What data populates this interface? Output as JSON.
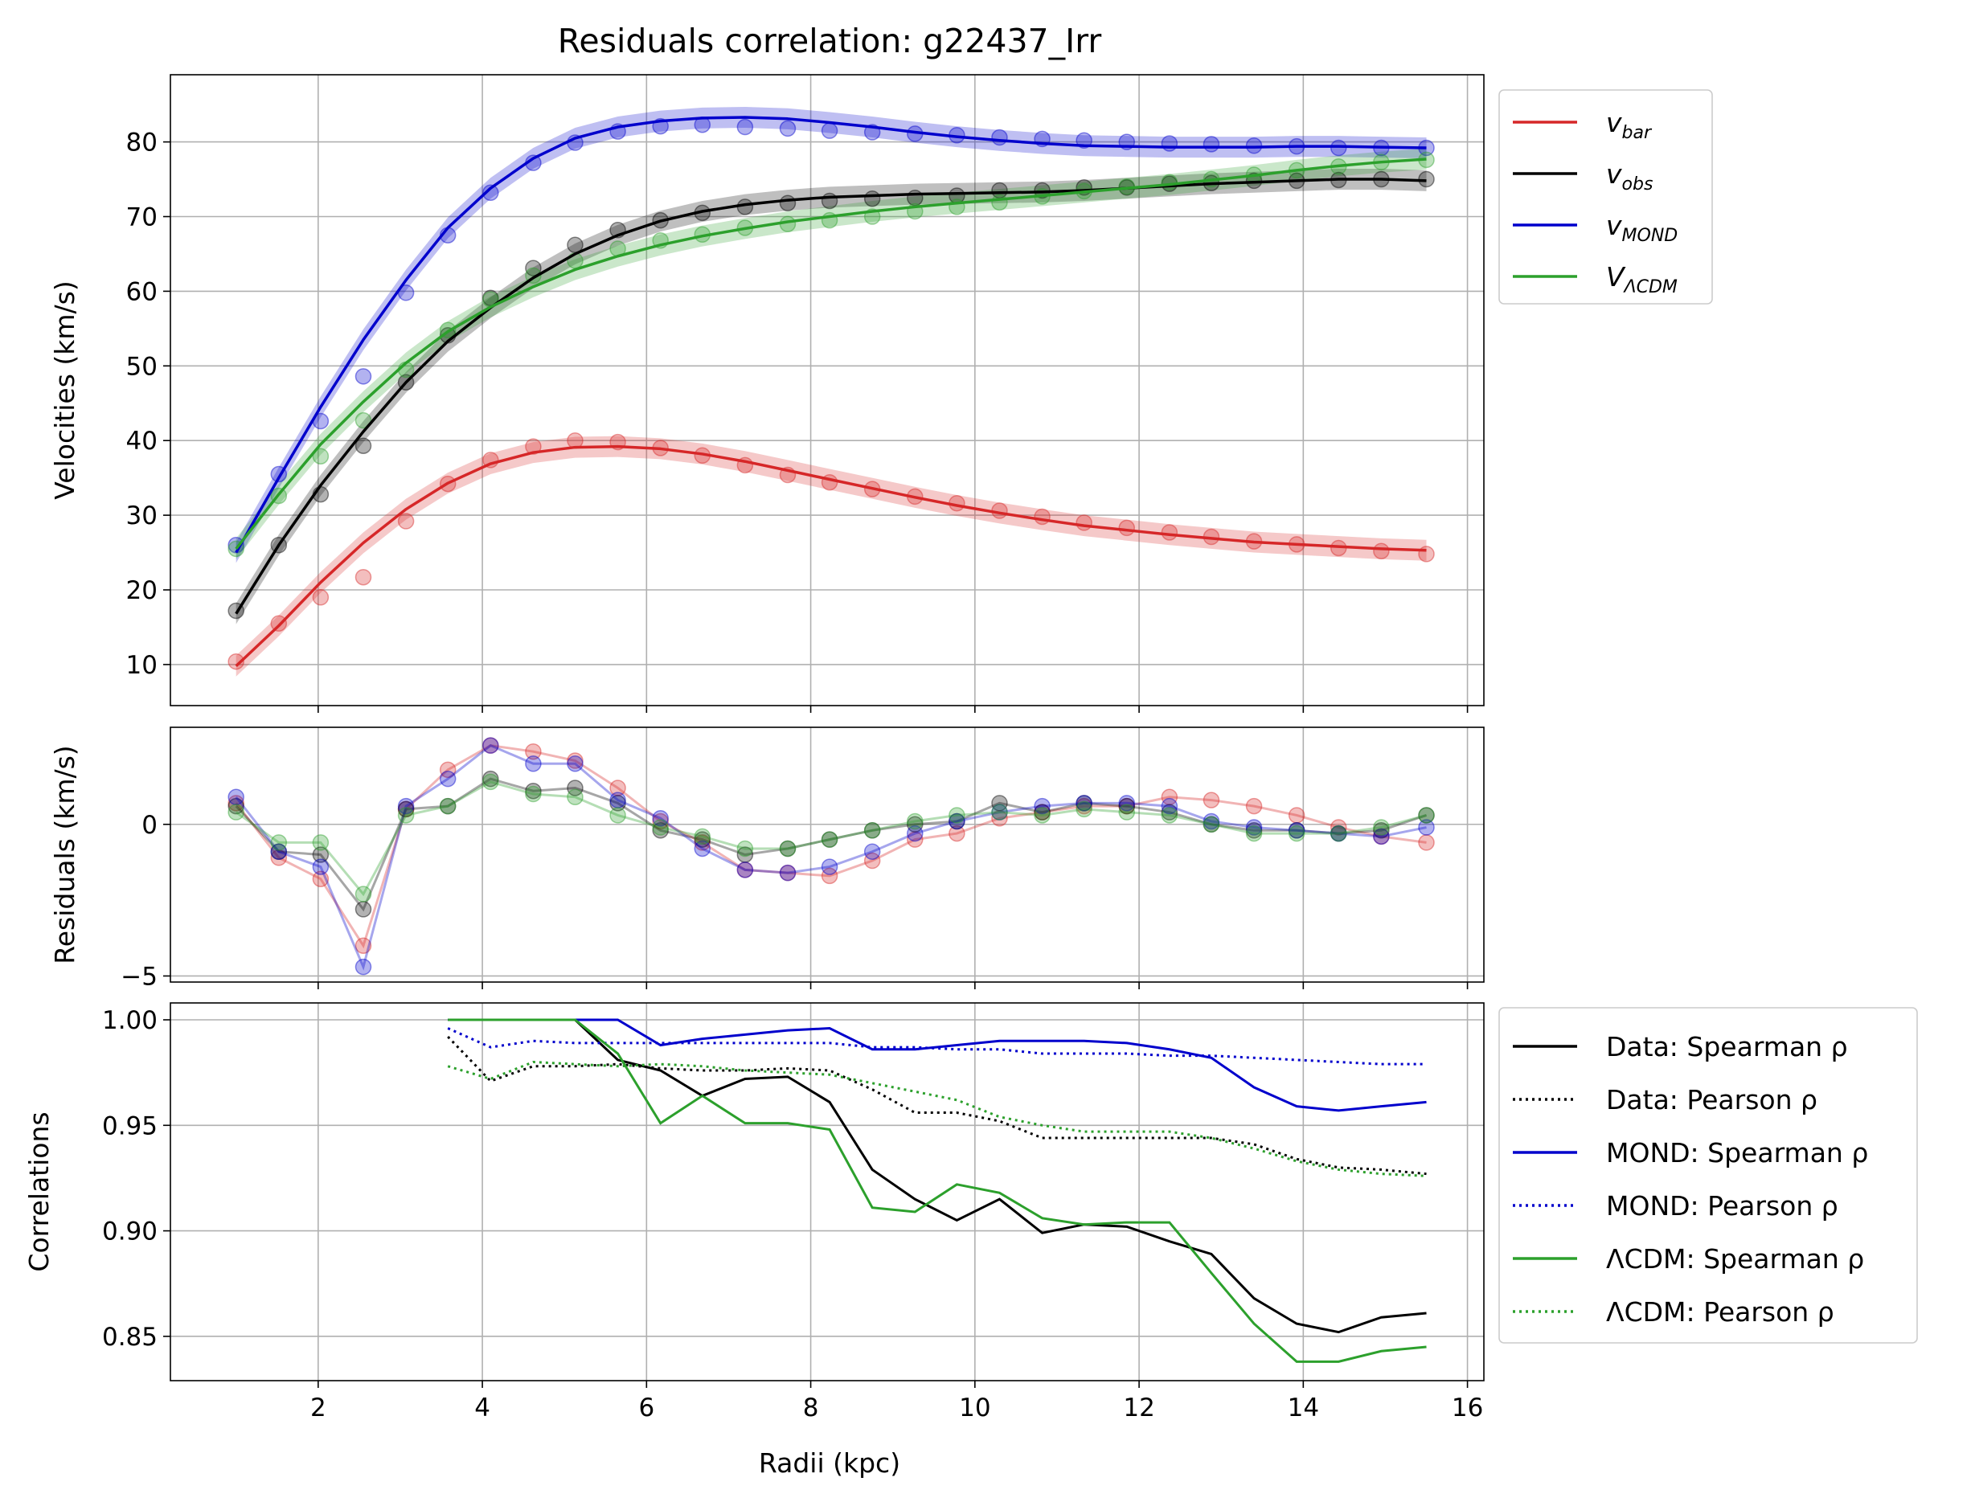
{
  "title": "Residuals correlation: g22437_Irr",
  "xlabel": "Radii (kpc)",
  "colors": {
    "vbar": "#d62728",
    "vobs": "#000000",
    "vmond": "#0000cc",
    "vlcdm": "#2ca02c",
    "grid": "#b0b0b0"
  },
  "legend_top": [
    {
      "key": "vbar",
      "main": "v",
      "sub": "bar"
    },
    {
      "key": "vobs",
      "main": "v",
      "sub": "obs"
    },
    {
      "key": "vmond",
      "main": "v",
      "sub": "MOND"
    },
    {
      "key": "vlcdm",
      "main": "V",
      "sub": "ΛCDM"
    }
  ],
  "legend_bottom": [
    {
      "label": "Data: Spearman ρ",
      "color": "#000000",
      "style": "solid"
    },
    {
      "label": "Data: Pearson ρ",
      "color": "#000000",
      "style": "dotted"
    },
    {
      "label": "MOND: Spearman ρ",
      "color": "#0000cc",
      "style": "solid"
    },
    {
      "label": "MOND: Pearson ρ",
      "color": "#0000cc",
      "style": "dotted"
    },
    {
      "label": "ΛCDM: Spearman ρ",
      "color": "#2ca02c",
      "style": "solid"
    },
    {
      "label": "ΛCDM: Pearson ρ",
      "color": "#2ca02c",
      "style": "dotted"
    }
  ],
  "chart_data": [
    {
      "type": "line",
      "panel": "velocities",
      "ylabel": "Velocities (km/s)",
      "xlim": [
        0.2,
        16.2
      ],
      "ylim": [
        4.5,
        89
      ],
      "xticks": [
        2,
        4,
        6,
        8,
        10,
        12,
        14,
        16
      ],
      "yticks": [
        10,
        20,
        30,
        40,
        50,
        60,
        70,
        80
      ],
      "grid": true,
      "legend_position": "outside-right",
      "x": [
        1.0,
        1.52,
        2.03,
        2.55,
        3.07,
        3.58,
        4.1,
        4.62,
        5.13,
        5.65,
        6.17,
        6.68,
        7.2,
        7.72,
        8.23,
        8.75,
        9.27,
        9.78,
        10.3,
        10.82,
        11.33,
        11.85,
        12.37,
        12.88,
        13.4,
        13.92,
        14.43,
        14.95,
        15.5
      ],
      "series": [
        {
          "key": "vbar",
          "name": "v_bar",
          "points": [
            10.4,
            15.5,
            19.0,
            21.7,
            29.2,
            34.2,
            37.4,
            39.2,
            40.0,
            39.8,
            39.0,
            38.0,
            36.7,
            35.4,
            34.4,
            33.5,
            32.5,
            31.6,
            30.6,
            29.8,
            29.0,
            28.3,
            27.7,
            27.1,
            26.5,
            26.1,
            25.6,
            25.2,
            24.8
          ],
          "curve": [
            9.8,
            15.2,
            21.0,
            26.3,
            30.8,
            34.3,
            36.9,
            38.4,
            39.1,
            39.2,
            38.9,
            38.2,
            37.2,
            36.0,
            34.8,
            33.6,
            32.4,
            31.3,
            30.3,
            29.4,
            28.6,
            28.0,
            27.4,
            26.9,
            26.4,
            26.1,
            25.8,
            25.5,
            25.3
          ]
        },
        {
          "key": "vobs",
          "name": "v_obs",
          "points": [
            17.2,
            26.0,
            32.8,
            39.3,
            47.8,
            54.1,
            59.1,
            63.1,
            66.2,
            68.2,
            69.5,
            70.5,
            71.3,
            71.8,
            72.1,
            72.4,
            72.5,
            72.8,
            73.5,
            73.5,
            73.9,
            73.9,
            74.4,
            74.5,
            74.8,
            74.8,
            74.9,
            75.0,
            75.0
          ],
          "curve": [
            16.8,
            26.0,
            34.0,
            41.2,
            47.8,
            53.3,
            57.8,
            61.8,
            65.0,
            67.5,
            69.4,
            70.7,
            71.6,
            72.2,
            72.6,
            72.8,
            73.0,
            73.1,
            73.2,
            73.3,
            73.5,
            73.8,
            74.1,
            74.4,
            74.6,
            74.8,
            75.0,
            75.0,
            74.8
          ]
        },
        {
          "key": "vmond",
          "name": "v_MOND",
          "points": [
            26.0,
            35.5,
            42.6,
            48.6,
            59.8,
            67.5,
            73.2,
            77.2,
            79.9,
            81.4,
            82.1,
            82.3,
            82.0,
            81.8,
            81.5,
            81.3,
            81.1,
            80.9,
            80.6,
            80.4,
            80.2,
            80.0,
            79.8,
            79.7,
            79.5,
            79.4,
            79.2,
            79.2,
            79.2
          ],
          "curve": [
            25.0,
            35.0,
            44.5,
            53.5,
            61.5,
            68.5,
            73.8,
            77.8,
            80.5,
            82.0,
            82.8,
            83.2,
            83.3,
            83.1,
            82.6,
            82.0,
            81.3,
            80.7,
            80.2,
            79.8,
            79.5,
            79.4,
            79.3,
            79.3,
            79.3,
            79.4,
            79.4,
            79.3,
            79.2
          ]
        },
        {
          "key": "vlcdm",
          "name": "V_ΛCDM",
          "points": [
            25.5,
            32.6,
            37.9,
            42.7,
            49.5,
            54.8,
            58.9,
            62.1,
            64.1,
            65.7,
            66.8,
            67.6,
            68.5,
            69.0,
            69.5,
            70.0,
            70.7,
            71.3,
            71.9,
            72.7,
            73.4,
            74.0,
            74.6,
            75.0,
            75.6,
            76.2,
            76.7,
            77.3,
            77.6
          ],
          "curve": [
            25.5,
            32.8,
            39.5,
            45.2,
            50.4,
            54.6,
            57.9,
            60.6,
            62.9,
            64.7,
            66.2,
            67.4,
            68.4,
            69.3,
            70.0,
            70.7,
            71.3,
            71.8,
            72.3,
            72.8,
            73.3,
            73.8,
            74.3,
            74.9,
            75.5,
            76.2,
            76.8,
            77.3,
            77.7
          ]
        }
      ]
    },
    {
      "type": "line",
      "panel": "residuals",
      "ylabel": "Residuals (km/s)",
      "xlim": [
        0.2,
        16.2
      ],
      "ylim": [
        -5.2,
        3.2
      ],
      "xticks": [
        2,
        4,
        6,
        8,
        10,
        12,
        14,
        16
      ],
      "yticks": [
        -5,
        0
      ],
      "grid": true,
      "x": [
        1.0,
        1.52,
        2.03,
        2.55,
        3.07,
        3.58,
        4.1,
        4.62,
        5.13,
        5.65,
        6.17,
        6.68,
        7.2,
        7.72,
        8.23,
        8.75,
        9.27,
        9.78,
        10.3,
        10.82,
        11.33,
        11.85,
        12.37,
        12.88,
        13.4,
        13.92,
        14.43,
        14.95,
        15.5
      ],
      "series": [
        {
          "key": "vbar",
          "name": "v_bar",
          "values": [
            0.7,
            -1.1,
            -1.8,
            -4.0,
            0.5,
            1.8,
            2.6,
            2.4,
            2.1,
            1.2,
            0.1,
            -0.6,
            -1.5,
            -1.6,
            -1.7,
            -1.2,
            -0.5,
            -0.3,
            0.2,
            0.4,
            0.6,
            0.6,
            0.9,
            0.8,
            0.6,
            0.3,
            -0.1,
            -0.4,
            -0.6
          ]
        },
        {
          "key": "vobs",
          "name": "v_obs",
          "values": [
            0.6,
            -0.9,
            -1.0,
            -2.8,
            0.5,
            0.6,
            1.5,
            1.1,
            1.2,
            0.7,
            -0.2,
            -0.5,
            -1.0,
            -0.8,
            -0.5,
            -0.2,
            0.0,
            0.1,
            0.7,
            0.4,
            0.7,
            0.6,
            0.4,
            0.0,
            -0.2,
            -0.2,
            -0.3,
            -0.2,
            0.3
          ]
        },
        {
          "key": "vmond",
          "name": "v_MOND",
          "values": [
            0.9,
            -0.9,
            -1.4,
            -4.7,
            0.6,
            1.5,
            2.6,
            2.0,
            2.0,
            0.8,
            0.2,
            -0.8,
            -1.5,
            -1.6,
            -1.4,
            -0.9,
            -0.3,
            0.1,
            0.4,
            0.6,
            0.7,
            0.7,
            0.6,
            0.1,
            -0.1,
            -0.2,
            -0.3,
            -0.4,
            -0.1
          ]
        },
        {
          "key": "vlcdm",
          "name": "V_ΛCDM",
          "values": [
            0.4,
            -0.6,
            -0.6,
            -2.3,
            0.3,
            0.6,
            1.4,
            1.0,
            0.9,
            0.3,
            -0.1,
            -0.4,
            -0.8,
            -0.8,
            -0.5,
            -0.2,
            0.1,
            0.3,
            0.4,
            0.3,
            0.5,
            0.4,
            0.3,
            0.0,
            -0.3,
            -0.3,
            -0.3,
            -0.1,
            0.3
          ]
        }
      ]
    },
    {
      "type": "line",
      "panel": "correlations",
      "ylabel": "Correlations",
      "xlim": [
        0.2,
        16.2
      ],
      "ylim": [
        0.829,
        1.008
      ],
      "xticks": [
        2,
        4,
        6,
        8,
        10,
        12,
        14,
        16
      ],
      "yticks": [
        0.85,
        0.9,
        0.95,
        1.0
      ],
      "ytick_labels": [
        "0.85",
        "0.90",
        "0.95",
        "1.00"
      ],
      "grid": true,
      "legend_position": "outside-right",
      "x": [
        3.58,
        4.1,
        4.62,
        5.13,
        5.65,
        6.17,
        6.68,
        7.2,
        7.72,
        8.23,
        8.75,
        9.27,
        9.78,
        10.3,
        10.82,
        11.33,
        11.85,
        12.37,
        12.88,
        13.4,
        13.92,
        14.43,
        14.95,
        15.5
      ],
      "series": [
        {
          "name": "Data: Spearman ρ",
          "color": "#000000",
          "style": "solid",
          "values": [
            1.0,
            1.0,
            1.0,
            1.0,
            0.981,
            0.976,
            0.964,
            0.972,
            0.973,
            0.961,
            0.929,
            0.915,
            0.905,
            0.915,
            0.899,
            0.903,
            0.902,
            0.895,
            0.889,
            0.868,
            0.856,
            0.852,
            0.859,
            0.861
          ]
        },
        {
          "name": "Data: Pearson ρ",
          "color": "#000000",
          "style": "dotted",
          "values": [
            0.992,
            0.971,
            0.978,
            0.978,
            0.979,
            0.977,
            0.976,
            0.976,
            0.977,
            0.976,
            0.967,
            0.956,
            0.956,
            0.952,
            0.944,
            0.944,
            0.944,
            0.944,
            0.944,
            0.941,
            0.934,
            0.93,
            0.929,
            0.927
          ]
        },
        {
          "name": "MOND: Spearman ρ",
          "color": "#0000cc",
          "style": "solid",
          "values": [
            1.0,
            1.0,
            1.0,
            1.0,
            1.0,
            0.988,
            0.991,
            0.993,
            0.995,
            0.996,
            0.986,
            0.986,
            0.988,
            0.99,
            0.99,
            0.99,
            0.989,
            0.986,
            0.982,
            0.968,
            0.959,
            0.957,
            0.959,
            0.961
          ]
        },
        {
          "name": "MOND: Pearson ρ",
          "color": "#0000cc",
          "style": "dotted",
          "values": [
            0.996,
            0.987,
            0.99,
            0.989,
            0.989,
            0.989,
            0.989,
            0.989,
            0.989,
            0.989,
            0.987,
            0.987,
            0.986,
            0.986,
            0.984,
            0.984,
            0.984,
            0.983,
            0.983,
            0.982,
            0.981,
            0.98,
            0.979,
            0.979
          ]
        },
        {
          "name": "ΛCDM: Spearman ρ",
          "color": "#2ca02c",
          "style": "solid",
          "values": [
            1.0,
            1.0,
            1.0,
            1.0,
            0.984,
            0.951,
            0.964,
            0.951,
            0.951,
            0.948,
            0.911,
            0.909,
            0.922,
            0.918,
            0.906,
            0.903,
            0.904,
            0.904,
            0.88,
            0.856,
            0.838,
            0.838,
            0.843,
            0.845
          ]
        },
        {
          "name": "ΛCDM: Pearson ρ",
          "color": "#2ca02c",
          "style": "dotted",
          "values": [
            0.978,
            0.972,
            0.98,
            0.979,
            0.978,
            0.979,
            0.978,
            0.976,
            0.975,
            0.974,
            0.97,
            0.966,
            0.962,
            0.954,
            0.95,
            0.947,
            0.947,
            0.947,
            0.944,
            0.939,
            0.933,
            0.929,
            0.927,
            0.926
          ]
        }
      ]
    }
  ]
}
